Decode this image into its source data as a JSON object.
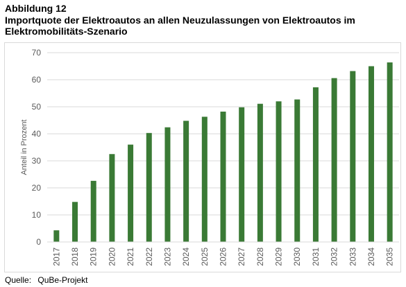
{
  "figure": {
    "label": "Abbildung 12",
    "title": "Importquote der Elektroautos an allen Neuzulassungen von Elektroautos im Elektromobilitäts-Szenario",
    "source_label": "Quelle:",
    "source_value": "QuBe-Projekt"
  },
  "colors": {
    "bar": "#3a7a35",
    "grid": "#d9d9d9",
    "axis_text": "#595959"
  },
  "chart_data": {
    "type": "bar",
    "title": "",
    "xlabel": "",
    "ylabel": "Anteil in Prozent",
    "ylim": [
      0,
      70
    ],
    "yticks": [
      0,
      10,
      20,
      30,
      40,
      50,
      60,
      70
    ],
    "grid": true,
    "categories": [
      "2017",
      "2018",
      "2019",
      "2020",
      "2021",
      "2022",
      "2023",
      "2024",
      "2025",
      "2026",
      "2027",
      "2028",
      "2029",
      "2030",
      "2031",
      "2032",
      "2033",
      "2034",
      "2035"
    ],
    "values": [
      4.3,
      14.8,
      22.6,
      32.5,
      36.0,
      40.3,
      42.4,
      44.8,
      46.3,
      48.2,
      49.8,
      51.1,
      52.0,
      52.7,
      57.2,
      60.6,
      63.2,
      65.0,
      66.4
    ]
  }
}
